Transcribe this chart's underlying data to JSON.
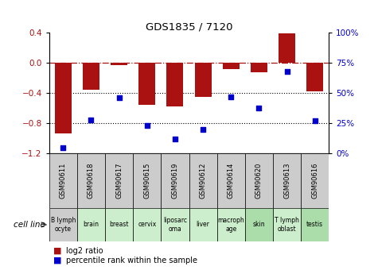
{
  "title": "GDS1835 / 7120",
  "samples": [
    "GSM90611",
    "GSM90618",
    "GSM90617",
    "GSM90615",
    "GSM90619",
    "GSM90612",
    "GSM90614",
    "GSM90620",
    "GSM90613",
    "GSM90616"
  ],
  "cell_lines": [
    "B lymph\nocyte",
    "brain",
    "breast",
    "cervix",
    "liposarc\noma",
    "liver",
    "macroph\nage",
    "skin",
    "T lymph\noblast",
    "testis"
  ],
  "log2_ratio": [
    -0.93,
    -0.35,
    -0.03,
    -0.55,
    -0.58,
    -0.45,
    -0.08,
    -0.12,
    0.39,
    -0.38
  ],
  "percentile_rank": [
    5,
    28,
    46,
    23,
    12,
    20,
    47,
    38,
    68,
    27
  ],
  "bar_color": "#aa1111",
  "dot_color": "#0000cc",
  "ylim_left": [
    -1.2,
    0.4
  ],
  "ylim_right": [
    0,
    100
  ],
  "yticks_left": [
    -1.2,
    -0.8,
    -0.4,
    0.0,
    0.4
  ],
  "yticks_right": [
    0,
    25,
    50,
    75,
    100
  ],
  "ytick_labels_right": [
    "0%",
    "25%",
    "50%",
    "75%",
    "100%"
  ],
  "hline_y": 0.0,
  "dotted_lines": [
    -0.4,
    -0.8
  ],
  "cell_line_colors": [
    "#cccccc",
    "#cceecc",
    "#cceecc",
    "#cceecc",
    "#cceecc",
    "#cceecc",
    "#cceecc",
    "#aaddaa",
    "#cceecc",
    "#aaddaa"
  ],
  "gsm_bg_color": "#cccccc",
  "legend_bar_label": "log2 ratio",
  "legend_dot_label": "percentile rank within the sample",
  "cell_line_label": "cell line",
  "bar_width": 0.6
}
